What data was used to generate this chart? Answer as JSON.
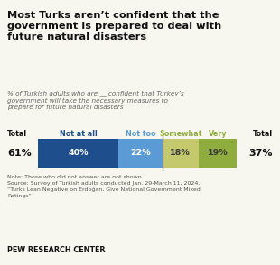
{
  "title": "Most Turks aren’t confident that the\ngovernment is prepared to deal with\nfuture natural disasters",
  "subtitle": "% of Turkish adults who are __ confident that Turkey’s\ngovernment will take the necessary measures to\nprepare for future natural disasters",
  "bar_segments": [
    {
      "label": "Not at all",
      "value": 40,
      "color": "#1f4e8c",
      "text_color": "#ffffff"
    },
    {
      "label": "Not too",
      "value": 22,
      "color": "#5b9bd5",
      "text_color": "#ffffff"
    },
    {
      "label": "Somewhat",
      "value": 18,
      "color": "#c5c96e",
      "text_color": "#3a3a3a"
    },
    {
      "label": "Very",
      "value": 19,
      "color": "#8fad3e",
      "text_color": "#3a3a3a"
    }
  ],
  "total_left": "61%",
  "total_right": "37%",
  "label_colors": {
    "Not at all": "#1f4e8c",
    "Not too": "#5b9bd5",
    "Somewhat": "#8fad3e",
    "Very": "#8fad3e"
  },
  "note": "Note: Those who did not answer are not shown.\nSource: Survey of Turkish adults conducted Jan. 29-March 11, 2024.\n“Turks Lean Negative on Erdoğan, Give National Government Mixed\nRatings”",
  "footer": "PEW RESEARCH CENTER",
  "background_color": "#f7f7ef"
}
